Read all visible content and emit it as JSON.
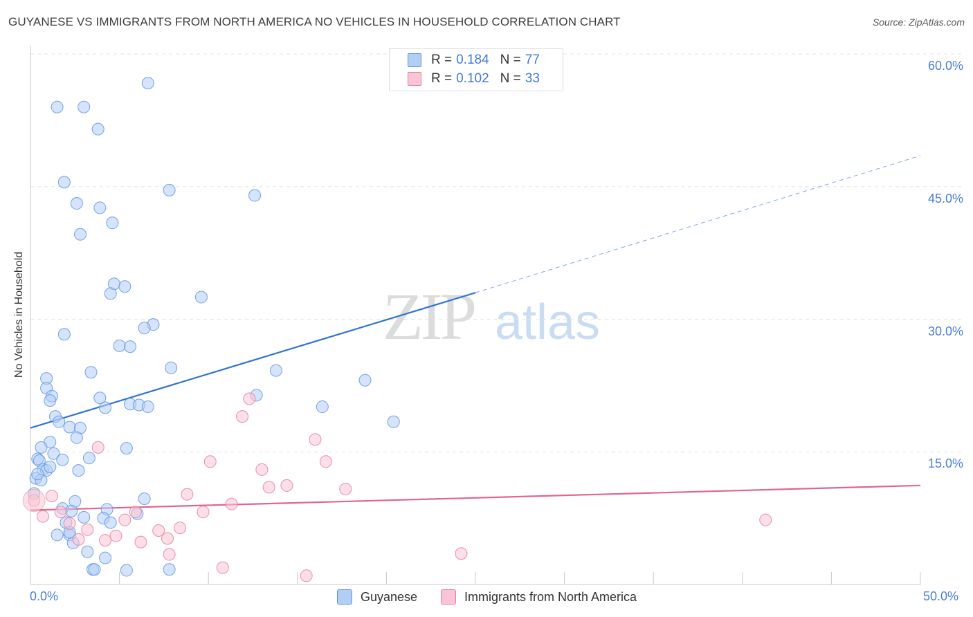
{
  "title": "GUYANESE VS IMMIGRANTS FROM NORTH AMERICA NO VEHICLES IN HOUSEHOLD CORRELATION CHART",
  "source": "Source: ZipAtlas.com",
  "watermark": {
    "zip": "ZIP",
    "atlas": "atlas"
  },
  "legend_top": [
    {
      "r_label": "R = ",
      "r_value": "0.184",
      "n_label": "N = ",
      "n_value": "77"
    },
    {
      "r_label": "R = ",
      "r_value": "0.102",
      "n_label": "N = ",
      "n_value": "33"
    }
  ],
  "chart_data": {
    "type": "scatter",
    "title": "GUYANESE VS IMMIGRANTS FROM NORTH AMERICA NO VEHICLES IN HOUSEHOLD CORRELATION CHART",
    "xlabel": "",
    "ylabel": "No Vehicles in Household",
    "xlim": [
      0,
      50
    ],
    "ylim": [
      0,
      60
    ],
    "x_tick_labels": [
      "0.0%",
      "50.0%"
    ],
    "y_ticks": [
      15,
      30,
      45,
      60
    ],
    "y_tick_labels": [
      "15.0%",
      "30.0%",
      "45.0%",
      "60.0%"
    ],
    "grid": true,
    "legend_position": "bottom",
    "series": [
      {
        "name": "Guyanese",
        "color": "#5b93e0",
        "fill": "#b3cef5",
        "r": "0.184",
        "n": "77",
        "trend": {
          "x0": 0,
          "y0": 17.7,
          "x1": 25,
          "y1": 33.0,
          "dashed_to_x": 50,
          "dashed_to_y": 48.5
        },
        "points": [
          [
            1.5,
            54.0
          ],
          [
            3.0,
            54.0
          ],
          [
            6.6,
            56.7
          ],
          [
            3.8,
            51.5
          ],
          [
            1.9,
            45.5
          ],
          [
            7.8,
            44.6
          ],
          [
            12.6,
            44.0
          ],
          [
            2.6,
            43.1
          ],
          [
            3.9,
            42.6
          ],
          [
            4.6,
            40.9
          ],
          [
            2.8,
            39.6
          ],
          [
            4.7,
            34.0
          ],
          [
            5.3,
            33.7
          ],
          [
            4.5,
            32.9
          ],
          [
            9.6,
            32.5
          ],
          [
            6.9,
            29.4
          ],
          [
            6.4,
            29.0
          ],
          [
            1.9,
            28.3
          ],
          [
            5.0,
            27.0
          ],
          [
            5.6,
            26.9
          ],
          [
            7.9,
            24.5
          ],
          [
            13.8,
            24.2
          ],
          [
            3.4,
            24.0
          ],
          [
            18.8,
            23.1
          ],
          [
            0.9,
            23.3
          ],
          [
            0.9,
            22.2
          ],
          [
            1.2,
            21.3
          ],
          [
            1.1,
            20.8
          ],
          [
            3.9,
            21.1
          ],
          [
            12.7,
            21.4
          ],
          [
            5.6,
            20.4
          ],
          [
            6.1,
            20.3
          ],
          [
            6.6,
            20.1
          ],
          [
            4.2,
            20.0
          ],
          [
            16.4,
            20.1
          ],
          [
            1.4,
            19.0
          ],
          [
            1.6,
            18.4
          ],
          [
            2.2,
            17.8
          ],
          [
            2.8,
            17.7
          ],
          [
            2.6,
            16.6
          ],
          [
            20.4,
            18.4
          ],
          [
            1.1,
            16.1
          ],
          [
            0.6,
            15.5
          ],
          [
            5.4,
            15.4
          ],
          [
            1.3,
            14.8
          ],
          [
            3.3,
            14.3
          ],
          [
            1.8,
            14.1
          ],
          [
            0.4,
            14.2
          ],
          [
            0.5,
            14.0
          ],
          [
            0.7,
            13.0
          ],
          [
            0.9,
            12.9
          ],
          [
            2.7,
            12.9
          ],
          [
            0.3,
            12.0
          ],
          [
            0.6,
            11.8
          ],
          [
            0.2,
            10.3
          ],
          [
            6.4,
            9.7
          ],
          [
            2.5,
            9.4
          ],
          [
            1.8,
            8.6
          ],
          [
            4.3,
            8.5
          ],
          [
            2.3,
            8.3
          ],
          [
            6.0,
            8.0
          ],
          [
            3.0,
            7.6
          ],
          [
            4.1,
            7.5
          ],
          [
            2.0,
            7.0
          ],
          [
            4.5,
            7.0
          ],
          [
            1.5,
            5.6
          ],
          [
            2.2,
            5.6
          ],
          [
            2.4,
            4.7
          ],
          [
            3.2,
            3.7
          ],
          [
            4.2,
            3.0
          ],
          [
            3.5,
            1.7
          ],
          [
            3.6,
            1.7
          ],
          [
            5.4,
            1.6
          ],
          [
            7.8,
            1.7
          ],
          [
            0.4,
            12.5
          ],
          [
            1.1,
            13.3
          ],
          [
            2.2,
            5.9
          ]
        ]
      },
      {
        "name": "Immigrants from North America",
        "color": "#e8799e",
        "fill": "#f9c4d4",
        "r": "0.102",
        "n": "33",
        "trend": {
          "x0": 0,
          "y0": 8.4,
          "x1": 50,
          "y1": 11.2
        },
        "points": [
          [
            0.2,
            9.5
          ],
          [
            1.2,
            10.0
          ],
          [
            0.7,
            7.7
          ],
          [
            1.7,
            8.2
          ],
          [
            2.2,
            6.9
          ],
          [
            2.7,
            5.1
          ],
          [
            3.2,
            6.2
          ],
          [
            3.8,
            15.5
          ],
          [
            4.2,
            5.0
          ],
          [
            4.8,
            5.5
          ],
          [
            5.3,
            7.3
          ],
          [
            5.9,
            8.2
          ],
          [
            6.2,
            4.8
          ],
          [
            7.2,
            6.1
          ],
          [
            7.7,
            5.2
          ],
          [
            7.8,
            3.4
          ],
          [
            8.4,
            6.4
          ],
          [
            8.8,
            10.2
          ],
          [
            9.7,
            8.2
          ],
          [
            10.1,
            13.9
          ],
          [
            10.8,
            1.9
          ],
          [
            11.3,
            9.1
          ],
          [
            11.9,
            19.0
          ],
          [
            12.3,
            21.0
          ],
          [
            13.0,
            13.0
          ],
          [
            13.4,
            11.0
          ],
          [
            14.4,
            11.2
          ],
          [
            15.5,
            1.0
          ],
          [
            16.0,
            16.4
          ],
          [
            16.6,
            13.9
          ],
          [
            17.7,
            10.8
          ],
          [
            24.2,
            3.5
          ],
          [
            41.3,
            7.3
          ]
        ]
      }
    ]
  }
}
